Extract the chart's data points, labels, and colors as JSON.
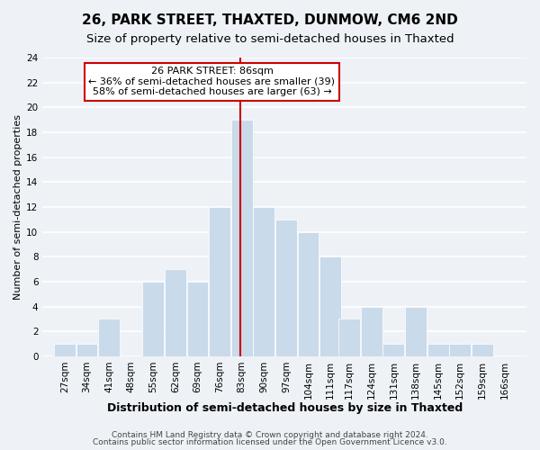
{
  "title": "26, PARK STREET, THAXTED, DUNMOW, CM6 2ND",
  "subtitle": "Size of property relative to semi-detached houses in Thaxted",
  "xlabel": "Distribution of semi-detached houses by size in Thaxted",
  "ylabel": "Number of semi-detached properties",
  "bin_labels": [
    "27sqm",
    "34sqm",
    "41sqm",
    "48sqm",
    "55sqm",
    "62sqm",
    "69sqm",
    "76sqm",
    "83sqm",
    "90sqm",
    "97sqm",
    "104sqm",
    "111sqm",
    "117sqm",
    "124sqm",
    "131sqm",
    "138sqm",
    "145sqm",
    "152sqm",
    "159sqm",
    "166sqm"
  ],
  "counts": [
    1,
    1,
    3,
    0,
    6,
    7,
    6,
    12,
    19,
    12,
    11,
    10,
    8,
    3,
    4,
    1,
    4,
    1,
    1,
    1
  ],
  "bin_edges_num": [
    27,
    34,
    41,
    48,
    55,
    62,
    69,
    76,
    83,
    90,
    97,
    104,
    111,
    117,
    124,
    131,
    138,
    145,
    152,
    159,
    166
  ],
  "bar_color": "#c9daea",
  "highlight_line_color": "#cc0000",
  "annotation_line1": "26 PARK STREET: 86sqm",
  "annotation_line2": "← 36% of semi-detached houses are smaller (39)",
  "annotation_line3": "58% of semi-detached houses are larger (63) →",
  "annotation_box_facecolor": "#ffffff",
  "annotation_box_edgecolor": "#cc0000",
  "ylim": [
    0,
    24
  ],
  "yticks": [
    0,
    2,
    4,
    6,
    8,
    10,
    12,
    14,
    16,
    18,
    20,
    22,
    24
  ],
  "footer1": "Contains HM Land Registry data © Crown copyright and database right 2024.",
  "footer2": "Contains public sector information licensed under the Open Government Licence v3.0.",
  "background_color": "#eef2f7",
  "grid_color": "#ffffff",
  "title_fontsize": 11,
  "subtitle_fontsize": 9.5,
  "xlabel_fontsize": 9,
  "ylabel_fontsize": 8,
  "tick_fontsize": 7.5,
  "annot_fontsize": 8,
  "footer_fontsize": 6.5,
  "property_sqm": 86
}
